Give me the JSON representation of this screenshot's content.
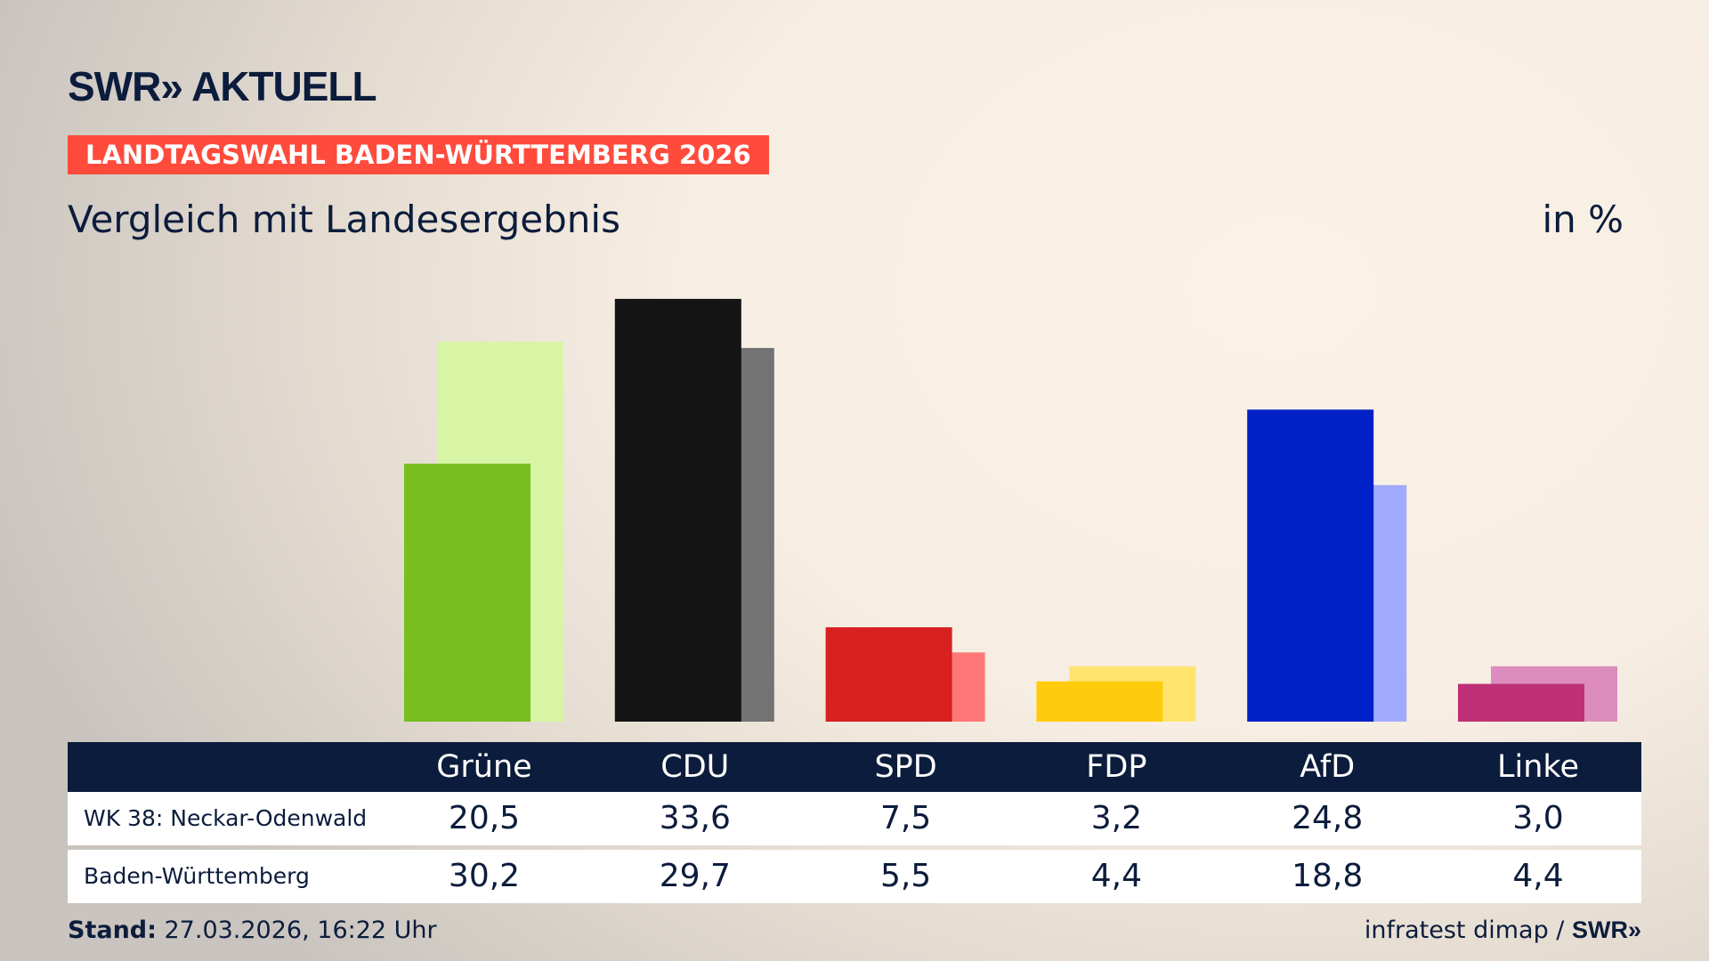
{
  "brand": "SWR» AKTUELL",
  "banner": "LANDTAGSWAHL BADEN-WÜRTTEMBERG 2026",
  "subtitle": "Vergleich mit Landesergebnis",
  "unit": "in %",
  "footer": {
    "stand_label": "Stand:",
    "stand_value": " 27.03.2026, 16:22 Uhr",
    "source": "infratest dimap / ",
    "source_brand": "SWR»"
  },
  "chart_data": {
    "type": "bar",
    "categories": [
      "Grüne",
      "CDU",
      "SPD",
      "FDP",
      "AfD",
      "Linke"
    ],
    "series": [
      {
        "name": "WK 38: Neckar-Odenwald",
        "values": [
          20.5,
          33.6,
          7.5,
          3.2,
          24.8,
          3.0
        ],
        "labels": [
          "20,5",
          "33,6",
          "7,5",
          "3,2",
          "24,8",
          "3,0"
        ]
      },
      {
        "name": "Baden-Württemberg",
        "values": [
          30.2,
          29.7,
          5.5,
          4.4,
          18.8,
          4.4
        ],
        "labels": [
          "30,2",
          "29,7",
          "5,5",
          "4,4",
          "18,8",
          "4,4"
        ]
      }
    ],
    "colors_front": [
      "#78be1e",
      "#141414",
      "#d82020",
      "#ffcc0d",
      "#0021c8",
      "#be3075"
    ],
    "colors_back": [
      "#d7f5a5",
      "#737373",
      "#ff7878",
      "#ffe36e",
      "#a0aaff",
      "#dc8cbe"
    ],
    "ylim": [
      0,
      34
    ]
  }
}
